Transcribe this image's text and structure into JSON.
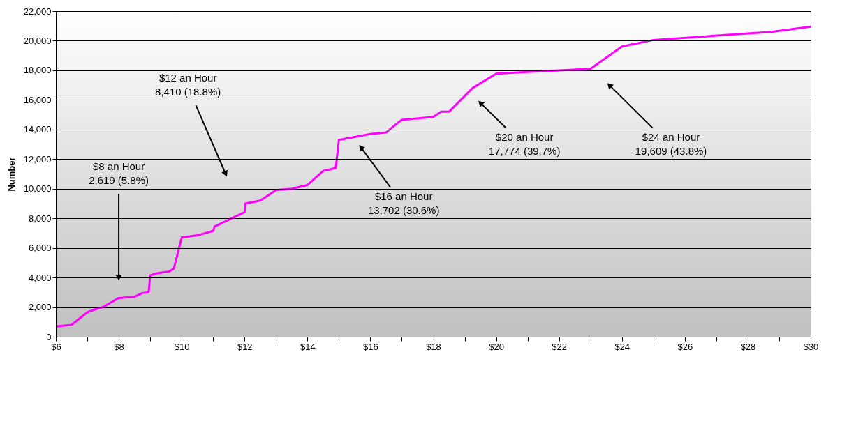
{
  "chart_data": {
    "type": "line",
    "ylabel": "Number",
    "x": [
      6,
      6.5,
      7,
      7.25,
      7.5,
      8,
      8.5,
      8.75,
      8.95,
      9,
      9.25,
      9.6,
      9.75,
      10,
      10.5,
      11,
      11.05,
      12,
      12.02,
      12.5,
      13,
      13.5,
      14,
      14.5,
      14.9,
      15,
      15.5,
      16,
      16.5,
      16.9,
      17,
      18,
      18.25,
      18.5,
      19.25,
      20,
      22,
      23,
      24,
      25,
      28.75,
      30
    ],
    "series": [
      {
        "color": "#ff00ff",
        "values": [
          700,
          800,
          1650,
          1850,
          2000,
          2619,
          2700,
          2950,
          3000,
          4150,
          4300,
          4400,
          4600,
          6700,
          6850,
          7150,
          7450,
          8410,
          9000,
          9200,
          9900,
          10000,
          10250,
          11200,
          11400,
          13300,
          13500,
          13702,
          13800,
          14500,
          14650,
          14850,
          15200,
          15200,
          16800,
          17774,
          18000,
          18100,
          19609,
          20050,
          20600,
          20950
        ]
      }
    ],
    "xlim": [
      6,
      30
    ],
    "xticks": [
      {
        "value": 6,
        "label": "$6"
      },
      {
        "value": 7,
        "label": null
      },
      {
        "value": 8,
        "label": "$8"
      },
      {
        "value": 9,
        "label": null
      },
      {
        "value": 10,
        "label": "$10"
      },
      {
        "value": 11,
        "label": null
      },
      {
        "value": 12,
        "label": "$12"
      },
      {
        "value": 13,
        "label": null
      },
      {
        "value": 14,
        "label": "$14"
      },
      {
        "value": 15,
        "label": null
      },
      {
        "value": 16,
        "label": "$16"
      },
      {
        "value": 17,
        "label": null
      },
      {
        "value": 18,
        "label": "$18"
      },
      {
        "value": 19,
        "label": null
      },
      {
        "value": 20,
        "label": "$20"
      },
      {
        "value": 21,
        "label": null
      },
      {
        "value": 22,
        "label": "$22"
      },
      {
        "value": 23,
        "label": null
      },
      {
        "value": 24,
        "label": "$24"
      },
      {
        "value": 25,
        "label": null
      },
      {
        "value": 26,
        "label": "$26"
      },
      {
        "value": 27,
        "label": null
      },
      {
        "value": 28,
        "label": "$28"
      },
      {
        "value": 29,
        "label": null
      },
      {
        "value": 30,
        "label": "$30"
      }
    ],
    "ylim": [
      0,
      22000
    ],
    "yticks": [
      0,
      {
        "value": 2000,
        "label": "2,000"
      },
      {
        "value": 4000,
        "label": "4,000"
      },
      {
        "value": 6000,
        "label": "6,000"
      },
      {
        "value": 8000,
        "label": "8,000"
      },
      {
        "value": 10000,
        "label": "10,000"
      },
      {
        "value": 12000,
        "label": "12,000"
      },
      {
        "value": 14000,
        "label": "14,000"
      },
      {
        "value": 16000,
        "label": "16,000"
      },
      {
        "value": 18000,
        "label": "18,000"
      },
      {
        "value": 20000,
        "label": "20,000"
      },
      {
        "value": 22000,
        "label": "22,000"
      }
    ],
    "grid": "y",
    "marker": "none",
    "line_style": "solid",
    "annotations": [
      {
        "text": "$8 an Hour\n2,619 (5.8%)",
        "x": 8,
        "y": 4000
      },
      "$12 an Hour\n8,410 (18.8%)",
      {
        "text": "$16 an Hour\n13,702 (30.6%)",
        "x": 15.7,
        "y": 12800
      },
      {
        "text": "$20 an Hour\n17,774 (39.7%)",
        "x": 19.5,
        "y": 15800
      },
      {
        "text": "$24 an Hour\n19,609 (43.8%)",
        "x": 23.6,
        "y": 17000
      }
    ]
  }
}
